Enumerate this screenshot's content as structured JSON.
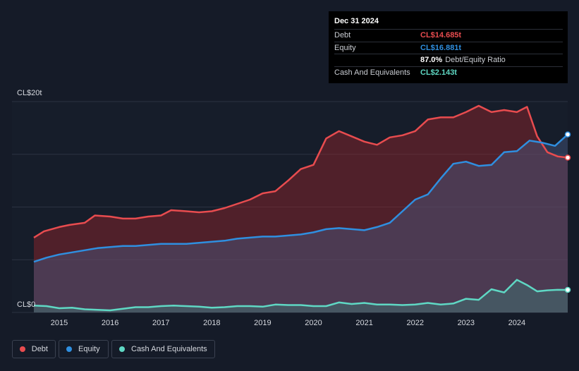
{
  "tooltip": {
    "date": "Dec 31 2024",
    "rows": [
      {
        "label": "Debt",
        "value": "CL$14.685t",
        "color": "#e84c4f"
      },
      {
        "label": "Equity",
        "value": "CL$16.881t",
        "color": "#2f8fe0"
      },
      {
        "label": "",
        "value": "87.0%",
        "extra": "Debt/Equity Ratio",
        "color": "#ffffff"
      },
      {
        "label": "Cash And Equivalents",
        "value": "CL$2.143t",
        "color": "#5fd8c4"
      }
    ]
  },
  "legend": [
    {
      "label": "Debt",
      "color": "#e84c4f"
    },
    {
      "label": "Equity",
      "color": "#2f8fe0"
    },
    {
      "label": "Cash And Equivalents",
      "color": "#5fd8c4"
    }
  ],
  "chart_data": {
    "type": "area",
    "y_top_label": "CL$20t",
    "y_bottom_label": "CL$0",
    "ylim": [
      0,
      20
    ],
    "xlim": [
      2014.5,
      2025.0
    ],
    "x_ticks": [
      "2015",
      "2016",
      "2017",
      "2018",
      "2019",
      "2020",
      "2021",
      "2022",
      "2023",
      "2024"
    ],
    "grid": true,
    "series": [
      {
        "name": "Debt",
        "color": "#e84c4f",
        "x": [
          2014.5,
          2014.7,
          2015.0,
          2015.2,
          2015.5,
          2015.7,
          2016.0,
          2016.25,
          2016.5,
          2016.75,
          2017.0,
          2017.2,
          2017.5,
          2017.75,
          2018.0,
          2018.25,
          2018.5,
          2018.75,
          2019.0,
          2019.25,
          2019.5,
          2019.75,
          2020.0,
          2020.25,
          2020.5,
          2020.75,
          2021.0,
          2021.25,
          2021.5,
          2021.75,
          2022.0,
          2022.25,
          2022.5,
          2022.75,
          2023.0,
          2023.25,
          2023.5,
          2023.75,
          2024.0,
          2024.2,
          2024.4,
          2024.6,
          2024.8,
          2025.0
        ],
        "values": [
          7.1,
          7.7,
          8.1,
          8.3,
          8.5,
          9.2,
          9.1,
          8.9,
          8.9,
          9.1,
          9.2,
          9.7,
          9.6,
          9.5,
          9.6,
          9.9,
          10.3,
          10.7,
          11.3,
          11.5,
          12.5,
          13.6,
          14.0,
          16.5,
          17.2,
          16.7,
          16.2,
          15.9,
          16.6,
          16.8,
          17.2,
          18.3,
          18.5,
          18.5,
          19.0,
          19.6,
          19.0,
          19.2,
          19.0,
          19.5,
          16.7,
          15.2,
          14.8,
          14.685
        ]
      },
      {
        "name": "Equity",
        "color": "#2f8fe0",
        "x": [
          2014.5,
          2014.75,
          2015.0,
          2015.25,
          2015.5,
          2015.75,
          2016.0,
          2016.25,
          2016.5,
          2016.75,
          2017.0,
          2017.25,
          2017.5,
          2017.75,
          2018.0,
          2018.25,
          2018.5,
          2018.75,
          2019.0,
          2019.25,
          2019.5,
          2019.75,
          2020.0,
          2020.25,
          2020.5,
          2020.75,
          2021.0,
          2021.25,
          2021.5,
          2021.75,
          2022.0,
          2022.25,
          2022.5,
          2022.75,
          2023.0,
          2023.25,
          2023.5,
          2023.75,
          2024.0,
          2024.25,
          2024.5,
          2024.75,
          2025.0
        ],
        "values": [
          4.8,
          5.2,
          5.5,
          5.7,
          5.9,
          6.1,
          6.2,
          6.3,
          6.3,
          6.4,
          6.5,
          6.5,
          6.5,
          6.6,
          6.7,
          6.8,
          7.0,
          7.1,
          7.2,
          7.2,
          7.3,
          7.4,
          7.6,
          7.9,
          8.0,
          7.9,
          7.8,
          8.1,
          8.5,
          9.6,
          10.7,
          11.2,
          12.7,
          14.1,
          14.3,
          13.9,
          14.0,
          15.2,
          15.3,
          16.3,
          16.1,
          15.8,
          16.881
        ]
      },
      {
        "name": "Cash And Equivalents",
        "color": "#5fd8c4",
        "x": [
          2014.5,
          2014.75,
          2015.0,
          2015.25,
          2015.5,
          2015.75,
          2016.0,
          2016.25,
          2016.5,
          2016.75,
          2017.0,
          2017.25,
          2017.5,
          2017.75,
          2018.0,
          2018.25,
          2018.5,
          2018.75,
          2019.0,
          2019.25,
          2019.5,
          2019.75,
          2020.0,
          2020.25,
          2020.5,
          2020.75,
          2021.0,
          2021.25,
          2021.5,
          2021.75,
          2022.0,
          2022.25,
          2022.5,
          2022.75,
          2023.0,
          2023.25,
          2023.5,
          2023.75,
          2024.0,
          2024.2,
          2024.4,
          2024.6,
          2024.8,
          2025.0
        ],
        "values": [
          0.65,
          0.6,
          0.4,
          0.45,
          0.3,
          0.25,
          0.2,
          0.35,
          0.5,
          0.5,
          0.6,
          0.65,
          0.6,
          0.55,
          0.45,
          0.5,
          0.6,
          0.6,
          0.55,
          0.75,
          0.7,
          0.7,
          0.6,
          0.6,
          0.95,
          0.8,
          0.9,
          0.75,
          0.75,
          0.7,
          0.75,
          0.9,
          0.75,
          0.85,
          1.3,
          1.2,
          2.2,
          1.9,
          3.1,
          2.6,
          2.0,
          2.1,
          2.15,
          2.143
        ]
      }
    ]
  }
}
